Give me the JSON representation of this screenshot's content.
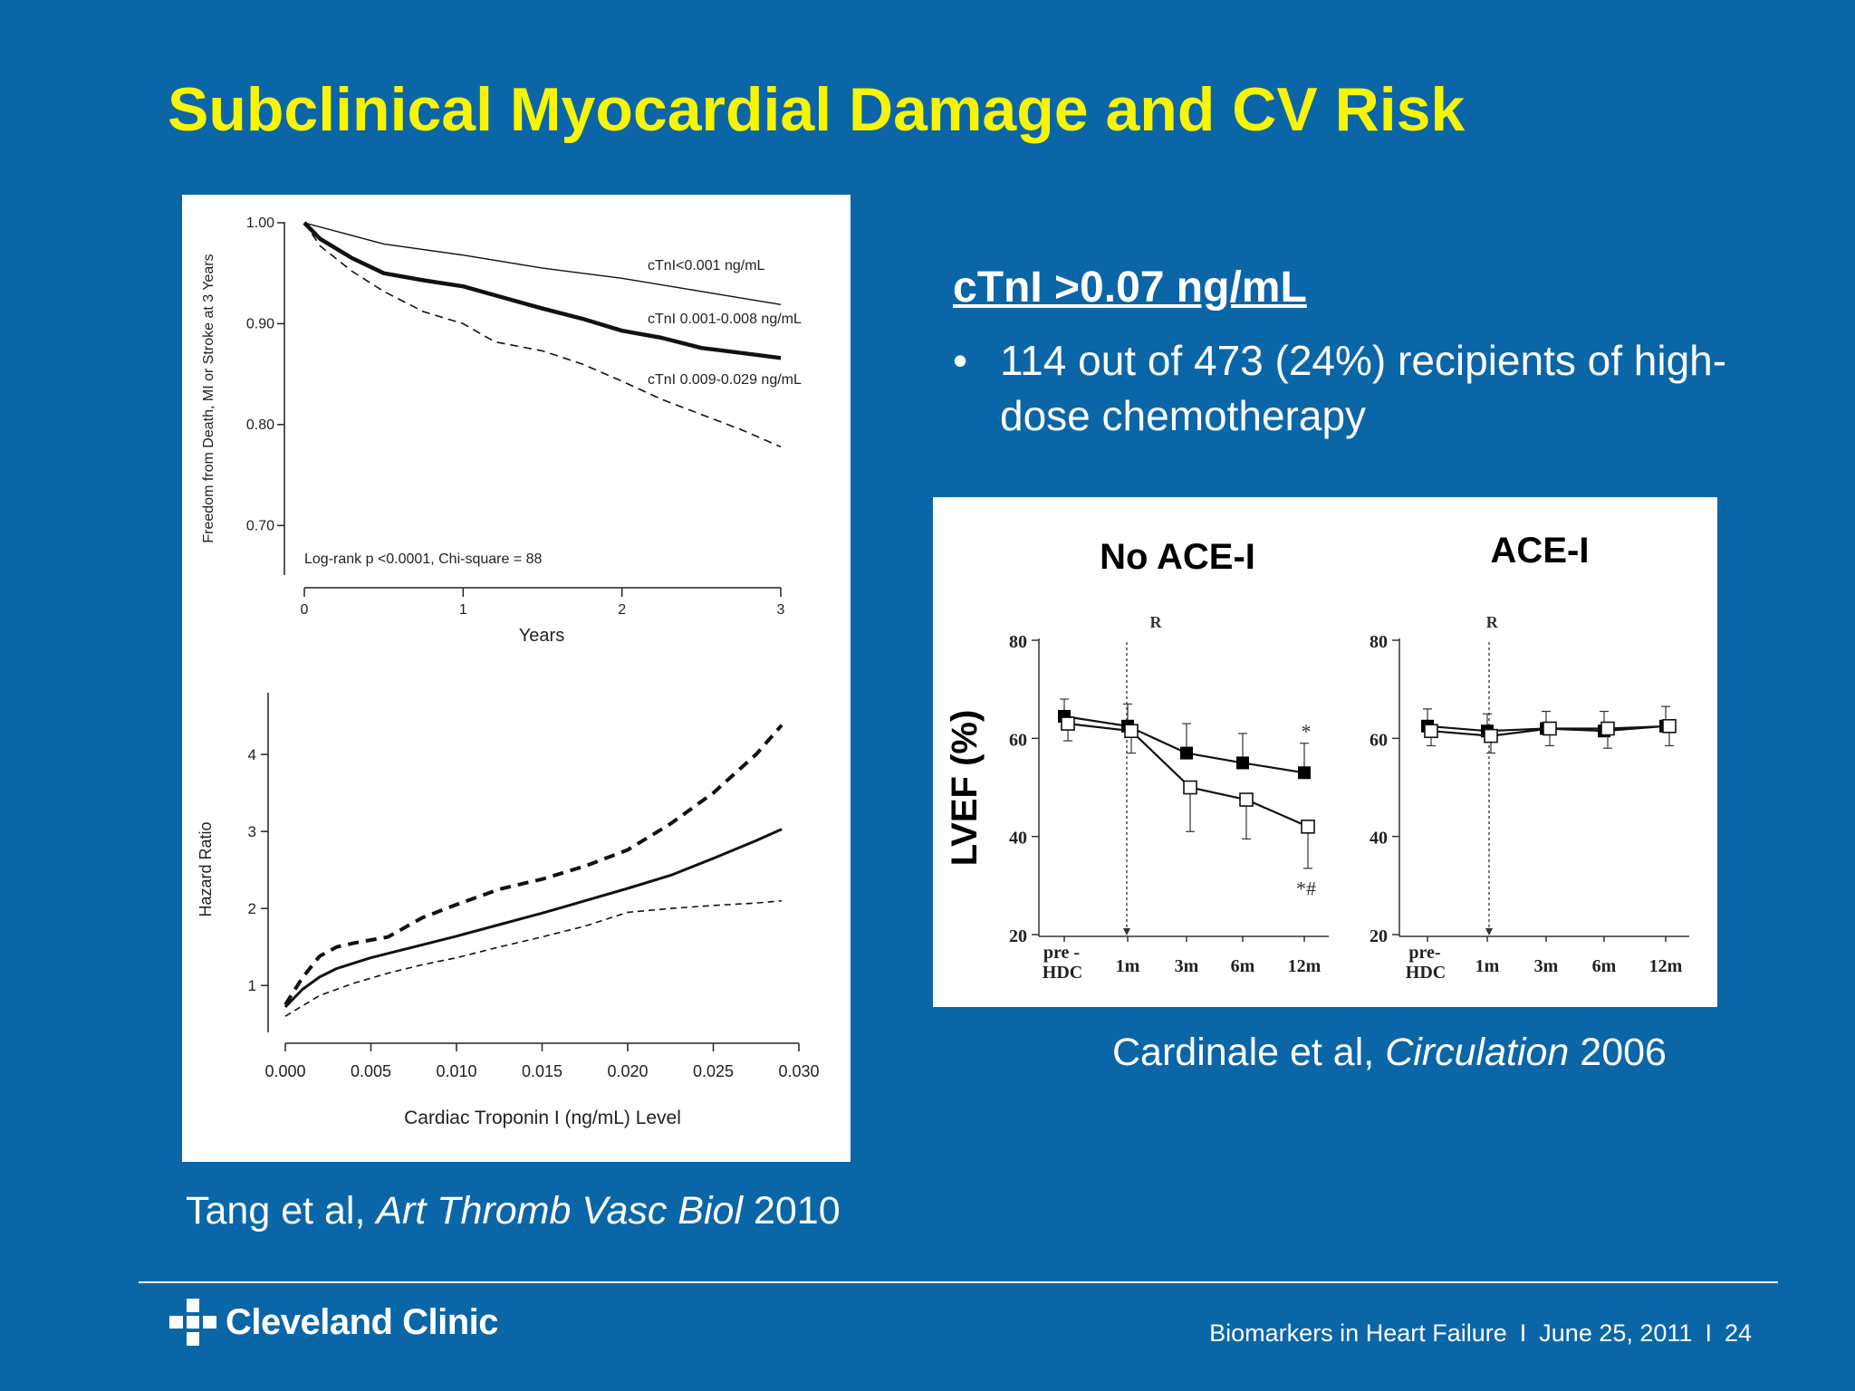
{
  "slide": {
    "title": "Subclinical Myocardial Damage and CV Risk",
    "ctni_heading": "cTnI >0.07 ng/mL",
    "bullet_text": "114 out of 473 (24%) recipients of high-dose chemotherapy",
    "left_citation": {
      "authors": "Tang et al,",
      "journal": "Art Thromb Vasc Biol",
      "year": "2010"
    },
    "right_citation": {
      "authors": "Cardinale et al,",
      "journal": "Circulation",
      "year": "2006"
    },
    "footer": {
      "topic": "Biomarkers in Heart Failure",
      "date": "June 25, 2011",
      "separator": "I",
      "page": "24"
    },
    "logo_text": "Cleveland Clinic",
    "colors": {
      "background": "#0b66a8",
      "title": "#f7f500",
      "text": "#ffffff"
    }
  },
  "chart_data": [
    {
      "type": "line",
      "ylabel": "Freedom from Death, MI or Stroke at 3 Years",
      "xlabel": "Years",
      "xlim": [
        0,
        3
      ],
      "ylim": [
        0.65,
        1.0
      ],
      "x_ticks": [
        "0",
        "1",
        "2",
        "3"
      ],
      "y_ticks": [
        "1.00",
        "0.90",
        "0.80",
        "0.70"
      ],
      "annotation": "Log-rank p <0.0001, Chi-square = 88",
      "series": [
        {
          "name": "cTnI<0.001 ng/mL",
          "style": "thin-solid",
          "x": [
            0,
            0.5,
            1.0,
            1.5,
            2.0,
            2.5,
            3.0
          ],
          "y": [
            1.0,
            0.979,
            0.968,
            0.955,
            0.945,
            0.932,
            0.919
          ]
        },
        {
          "name": "cTnI 0.001-0.008 ng/mL",
          "style": "thick-solid",
          "x": [
            0,
            0.1,
            0.3,
            0.5,
            0.75,
            1.0,
            1.25,
            1.5,
            1.75,
            2.0,
            2.25,
            2.5,
            2.75,
            3.0
          ],
          "y": [
            1.0,
            0.984,
            0.965,
            0.95,
            0.943,
            0.937,
            0.926,
            0.915,
            0.905,
            0.893,
            0.886,
            0.876,
            0.871,
            0.866
          ]
        },
        {
          "name": "cTnI 0.009-0.029 ng/mL",
          "style": "dashed",
          "x": [
            0,
            0.1,
            0.3,
            0.5,
            0.75,
            1.0,
            1.2,
            1.5,
            1.75,
            2.0,
            2.25,
            2.5,
            2.75,
            3.0
          ],
          "y": [
            1.0,
            0.977,
            0.952,
            0.932,
            0.912,
            0.9,
            0.882,
            0.873,
            0.86,
            0.843,
            0.825,
            0.81,
            0.795,
            0.778
          ]
        }
      ]
    },
    {
      "type": "line",
      "ylabel": "Hazard Ratio",
      "xlabel": "Cardiac Troponin I (ng/mL) Level",
      "xlim": [
        0,
        0.03
      ],
      "ylim": [
        0.45,
        4.8
      ],
      "x_ticks": [
        "0.000",
        "0.005",
        "0.010",
        "0.015",
        "0.020",
        "0.025",
        "0.030"
      ],
      "y_ticks": [
        "1",
        "2",
        "3",
        "4"
      ],
      "series": [
        {
          "role": "estimate",
          "style": "solid",
          "x": [
            0,
            0.001,
            0.002,
            0.003,
            0.005,
            0.0075,
            0.01,
            0.0125,
            0.015,
            0.0175,
            0.02,
            0.0225,
            0.025,
            0.0275,
            0.029
          ],
          "y": [
            0.72,
            0.95,
            1.11,
            1.22,
            1.36,
            1.5,
            1.64,
            1.79,
            1.94,
            2.1,
            2.26,
            2.43,
            2.65,
            2.88,
            3.03
          ]
        },
        {
          "role": "upper CI",
          "style": "thick-dashed",
          "x": [
            0,
            0.001,
            0.002,
            0.003,
            0.004,
            0.006,
            0.008,
            0.01,
            0.0125,
            0.015,
            0.0175,
            0.02,
            0.0225,
            0.025,
            0.0275,
            0.029
          ],
          "y": [
            0.75,
            1.1,
            1.38,
            1.5,
            1.55,
            1.63,
            1.88,
            2.05,
            2.25,
            2.38,
            2.55,
            2.76,
            3.1,
            3.5,
            4.0,
            4.38
          ]
        },
        {
          "role": "lower CI",
          "style": "thin-dashed",
          "x": [
            0,
            0.002,
            0.004,
            0.006,
            0.008,
            0.01,
            0.0125,
            0.015,
            0.0175,
            0.02,
            0.0225,
            0.025,
            0.0275,
            0.029
          ],
          "y": [
            0.6,
            0.87,
            1.03,
            1.16,
            1.27,
            1.36,
            1.5,
            1.63,
            1.77,
            1.95,
            2.0,
            2.04,
            2.07,
            2.1
          ]
        }
      ]
    },
    {
      "type": "line",
      "title": "No ACE-I",
      "ylabel": "LVEF (%)",
      "categories": [
        "pre - HDC",
        "1m",
        "3m",
        "6m",
        "12m"
      ],
      "ylim": [
        20,
        80
      ],
      "y_ticks": [
        "80",
        "60",
        "40",
        "20"
      ],
      "marker_label": "R",
      "series": [
        {
          "marker": "filled-square",
          "values": [
            64.5,
            62.5,
            57,
            55,
            53
          ],
          "errors": [
            3.5,
            4.5,
            6,
            6,
            6
          ]
        },
        {
          "marker": "open-square",
          "values": [
            63,
            61.5,
            50,
            47.5,
            42
          ],
          "errors": [
            3.5,
            4.5,
            9,
            8,
            8.5
          ]
        }
      ],
      "annotations": [
        {
          "text": "*",
          "category": "12m",
          "y": 61.5
        },
        {
          "text": "*#",
          "category": "12m",
          "y": 29.5
        }
      ]
    },
    {
      "type": "line",
      "title": "ACE-I",
      "categories": [
        "pre- HDC",
        "1m",
        "3m",
        "6m",
        "12m"
      ],
      "ylim": [
        20,
        80
      ],
      "y_ticks": [
        "80",
        "60",
        "40",
        "20"
      ],
      "marker_label": "R",
      "series": [
        {
          "marker": "filled-square",
          "values": [
            62.5,
            61.5,
            62,
            61.5,
            62.5
          ],
          "errors": [
            3.5,
            3.5,
            3.5,
            4,
            4
          ]
        },
        {
          "marker": "open-square",
          "values": [
            61.5,
            60.5,
            62,
            62,
            62.5
          ],
          "errors": [
            3,
            3.5,
            3.5,
            4,
            4
          ]
        }
      ]
    }
  ]
}
